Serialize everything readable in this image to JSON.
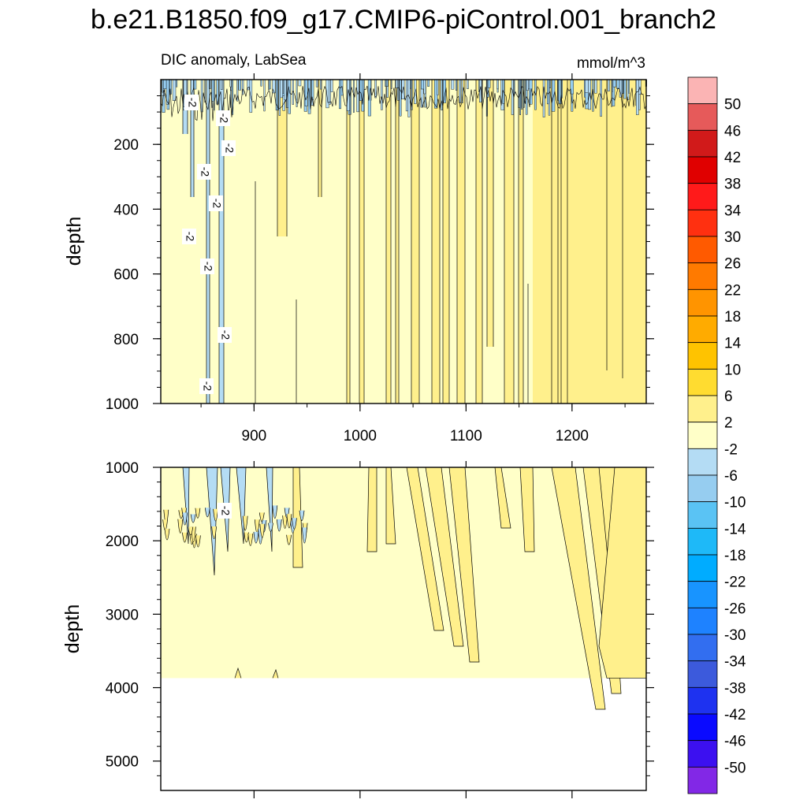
{
  "chart_data": {
    "type": "heatmap",
    "title": "b.e21.B1850.f09_g17.CMIP6-piControl.001_branch2",
    "subtitle_left": "DIC anomaly, LabSea",
    "units": "mmol/m^3",
    "contour_label": "-2",
    "colorbar": {
      "labels": [
        "50",
        "46",
        "42",
        "38",
        "34",
        "30",
        "26",
        "22",
        "18",
        "14",
        "10",
        "6",
        "2",
        "-2",
        "-6",
        "-10",
        "-14",
        "-18",
        "-22",
        "-26",
        "-30",
        "-34",
        "-38",
        "-42",
        "-46",
        "-50"
      ],
      "colors": [
        "#fbb4b4",
        "#e65a5a",
        "#d11a1a",
        "#e00000",
        "#ff1a1a",
        "#ff3010",
        "#ff5a00",
        "#ff7a00",
        "#ff9400",
        "#ffab00",
        "#ffc300",
        "#ffdc30",
        "#fff08c",
        "#ffffc8",
        "#b4dcf4",
        "#96cdf0",
        "#5ac3f4",
        "#1eb9f8",
        "#00acff",
        "#1894ff",
        "#1e82ff",
        "#326ef0",
        "#3c5adc",
        "#1e32f0",
        "#0a0aff",
        "#3c10f0",
        "#8228e6"
      ]
    },
    "panels": [
      {
        "name": "upper",
        "x_ticks": [
          "900",
          "1000",
          "1100",
          "1200"
        ],
        "xlim": [
          812,
          1270
        ],
        "ylabel": "depth",
        "y_ticks": [
          "200",
          "400",
          "600",
          "800",
          "1000"
        ],
        "ylim": [
          0,
          1000
        ],
        "y_reversed": true
      },
      {
        "name": "lower",
        "ylabel": "depth",
        "y_ticks": [
          "1000",
          "2000",
          "3000",
          "4000",
          "5000"
        ],
        "ylim": [
          1000,
          5400
        ],
        "y_reversed": true,
        "ocean_bottom": 3870
      }
    ]
  }
}
